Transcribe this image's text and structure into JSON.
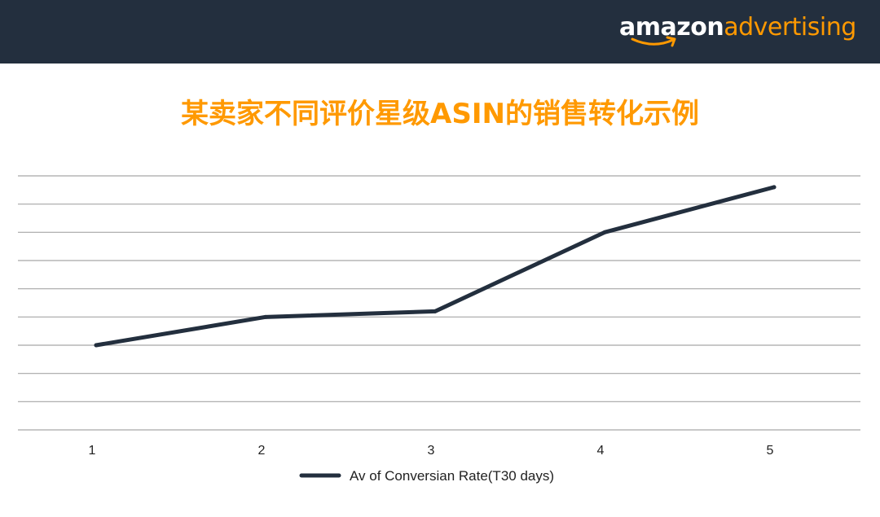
{
  "header": {
    "logo_part1": "amazon",
    "logo_part2": "advertising",
    "background": "#232f3e",
    "accent": "#ff9900"
  },
  "chart_data": {
    "type": "line",
    "title": "某卖家不同评价星级ASIN的销售转化示例",
    "categories": [
      "1",
      "2",
      "3",
      "4",
      "5"
    ],
    "series": [
      {
        "name": "Av of Conversian Rate(T30 days)",
        "values": [
          3.0,
          4.0,
          4.2,
          7.0,
          8.6
        ],
        "color": "#232f3e"
      }
    ],
    "ylim": [
      0,
      9
    ],
    "grid": true,
    "y_tick_labels_shown": false,
    "legend": "bottom-center",
    "xlabel": "",
    "ylabel": ""
  }
}
